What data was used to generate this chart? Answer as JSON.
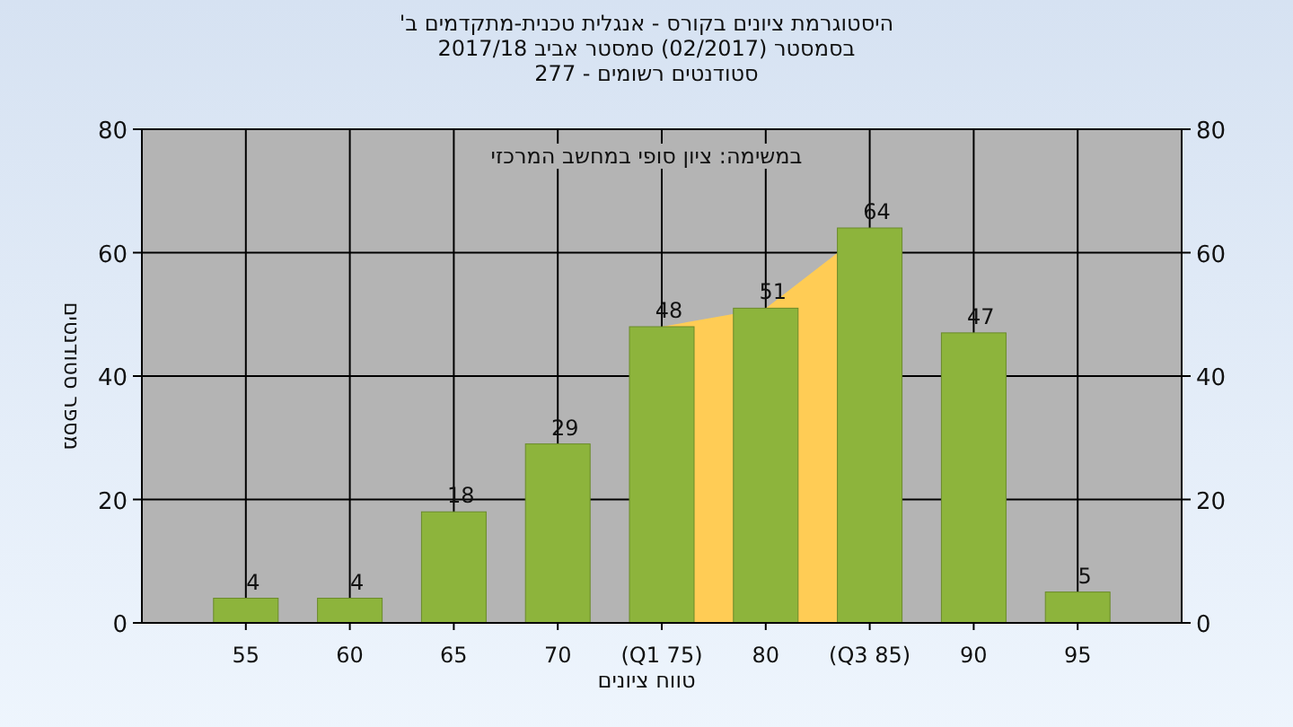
{
  "chart_data": {
    "type": "bar",
    "title": "היסטוגרמת ציונים בקורס - אנגלית טכנית-מתקדמים ב'",
    "subtitle": [
      "בסמסטר  (02/2017)  סמסטר אביב 2017/18",
      "סטודנטים רשומים - 277"
    ],
    "annotations": [
      "במשימה: ציון סופי במחשב המרכזי"
    ],
    "xlabel": "טווח ציונים",
    "ylabel": "מספר סטודנטים",
    "categories": [
      "55",
      "60",
      "65",
      "70",
      "(Q1 75)",
      "80",
      "(Q3 85)",
      "90",
      "95"
    ],
    "series": [
      {
        "color": "#8db43c",
        "values": [
          4,
          4,
          18,
          29,
          48,
          51,
          64,
          47,
          5
        ],
        "value_labels": [
          "4",
          "4",
          "18",
          "29",
          "48",
          "51",
          "64",
          "47",
          "5"
        ]
      }
    ],
    "bands": [
      {
        "axis": "x",
        "from": "(Q1 75)",
        "to": "(Q3 85)",
        "color": "#ffcc55"
      }
    ],
    "ylim": [
      0,
      80
    ],
    "yticks": [
      0,
      20,
      40,
      60,
      80
    ],
    "y2lim": [
      0,
      80
    ],
    "y2ticks": [
      0,
      20,
      40,
      60,
      80
    ],
    "grid": true
  }
}
